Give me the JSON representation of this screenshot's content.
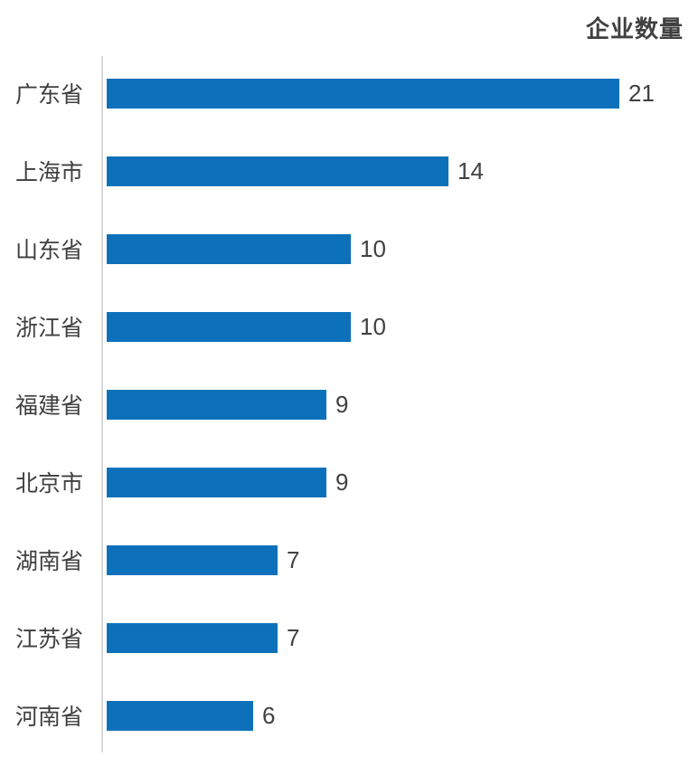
{
  "header": {
    "title": "企业数量"
  },
  "chart_data": {
    "type": "bar",
    "orientation": "horizontal",
    "title": "企业数量",
    "categories": [
      "广东省",
      "上海市",
      "山东省",
      "浙江省",
      "福建省",
      "北京市",
      "湖南省",
      "江苏省",
      "河南省"
    ],
    "values": [
      21,
      14,
      10,
      10,
      9,
      9,
      7,
      7,
      6
    ],
    "xlim": [
      0,
      21
    ],
    "grid": false,
    "legend": false,
    "data_labels": true,
    "colors": {
      "bar": "#0C71BA",
      "axis": "#D9D9D9",
      "title_text": "#404040",
      "category_text": "#3F3F3F",
      "value_text": "#404040"
    }
  }
}
